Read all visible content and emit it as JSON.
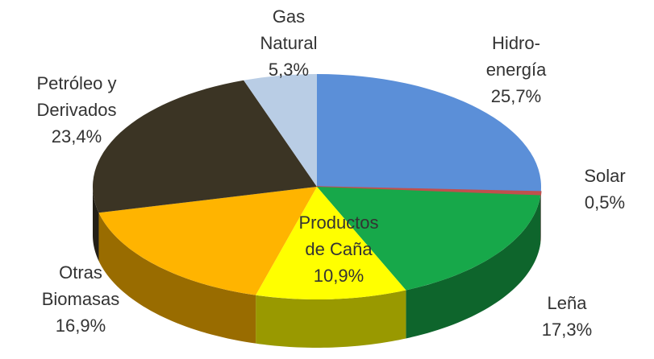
{
  "chart_data": {
    "type": "pie3d",
    "categories": [
      [
        "Hidro-",
        "energía"
      ],
      [
        "Solar"
      ],
      [
        "Leña"
      ],
      [
        "Productos",
        "de Caña"
      ],
      [
        "Otras",
        "Biomasas"
      ],
      [
        "Petróleo y",
        "Derivados"
      ],
      [
        "Gas",
        "Natural"
      ]
    ],
    "values": [
      25.7,
      0.5,
      17.3,
      10.9,
      16.9,
      23.4,
      5.3
    ],
    "value_labels": [
      "25,7%",
      "0,5%",
      "17,3%",
      "10,9%",
      "16,9%",
      "23,4%",
      "5,3%"
    ],
    "colors": [
      "#5b8fd8",
      "#c0504d",
      "#17a84a",
      "#ffff00",
      "#ffb400",
      "#3b3424",
      "#b9cde5"
    ]
  }
}
